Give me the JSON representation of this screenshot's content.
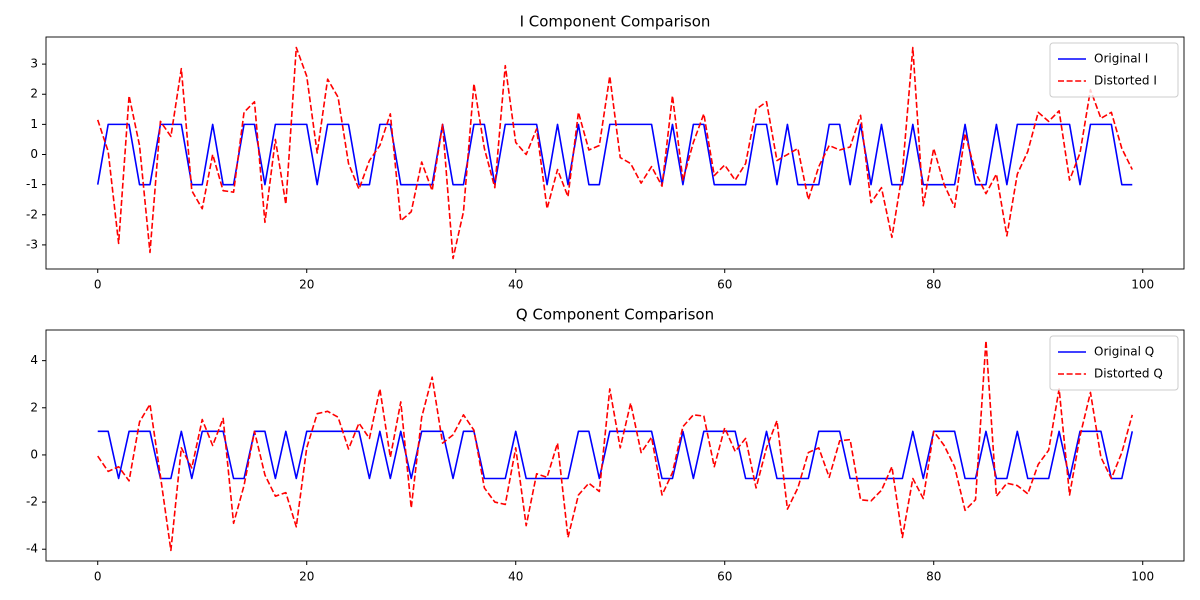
{
  "chart_data": [
    {
      "type": "line",
      "title": "I Component Comparison",
      "x": [
        0,
        1,
        2,
        3,
        4,
        5,
        6,
        7,
        8,
        9,
        10,
        11,
        12,
        13,
        14,
        15,
        16,
        17,
        18,
        19,
        20,
        21,
        22,
        23,
        24,
        25,
        26,
        27,
        28,
        29,
        30,
        31,
        32,
        33,
        34,
        35,
        36,
        37,
        38,
        39,
        40,
        41,
        42,
        43,
        44,
        45,
        46,
        47,
        48,
        49,
        50,
        51,
        52,
        53,
        54,
        55,
        56,
        57,
        58,
        59,
        60,
        61,
        62,
        63,
        64,
        65,
        66,
        67,
        68,
        69,
        70,
        71,
        72,
        73,
        74,
        75,
        76,
        77,
        78,
        79,
        80,
        81,
        82,
        83,
        84,
        85,
        86,
        87,
        88,
        89,
        90,
        91,
        92,
        93,
        94,
        95,
        96,
        97,
        98,
        99
      ],
      "series": [
        {
          "name": "Original I",
          "color": "#0000ff",
          "linestyle": "solid",
          "values": [
            -1,
            1,
            1,
            1,
            -1,
            -1,
            1,
            1,
            1,
            -1,
            -1,
            1,
            -1,
            -1,
            1,
            1,
            -1,
            1,
            1,
            1,
            1,
            -1,
            1,
            1,
            1,
            -1,
            -1,
            1,
            1,
            -1,
            -1,
            -1,
            -1,
            1,
            -1,
            -1,
            1,
            1,
            -1,
            1,
            1,
            1,
            1,
            -1,
            1,
            -1,
            1,
            -1,
            -1,
            1,
            1,
            1,
            1,
            1,
            -1,
            1,
            -1,
            1,
            1,
            -1,
            -1,
            -1,
            -1,
            1,
            1,
            -1,
            1,
            -1,
            -1,
            -1,
            1,
            1,
            -1,
            1,
            -1,
            1,
            -1,
            -1,
            1,
            -1,
            -1,
            -1,
            -1,
            1,
            -1,
            -1,
            1,
            -1,
            1,
            1,
            1,
            1,
            1,
            1,
            -1,
            1,
            1,
            1,
            -1,
            -1
          ]
        },
        {
          "name": "Distorted I",
          "color": "#ff0000",
          "linestyle": "dashed",
          "values": [
            1.15,
            0.1,
            -2.95,
            1.95,
            0.3,
            -3.25,
            1.1,
            0.6,
            2.85,
            -1.2,
            -1.8,
            0.0,
            -1.2,
            -1.25,
            1.4,
            1.75,
            -2.25,
            0.5,
            -1.65,
            3.55,
            2.6,
            0.05,
            2.5,
            1.9,
            -0.3,
            -1.15,
            -0.2,
            0.3,
            1.35,
            -2.2,
            -1.9,
            -0.25,
            -1.2,
            1.0,
            -3.45,
            -1.9,
            2.35,
            0.2,
            -1.1,
            2.95,
            0.4,
            0.0,
            0.85,
            -1.8,
            -0.5,
            -1.4,
            1.4,
            0.15,
            0.3,
            2.6,
            -0.1,
            -0.3,
            -0.95,
            -0.4,
            -1.05,
            1.95,
            -0.85,
            0.4,
            1.35,
            -0.7,
            -0.35,
            -0.85,
            -0.3,
            1.5,
            1.75,
            -0.2,
            0.0,
            0.2,
            -1.5,
            -0.4,
            0.3,
            0.15,
            0.25,
            1.3,
            -1.6,
            -1.1,
            -2.75,
            -0.6,
            3.55,
            -1.7,
            0.2,
            -1.0,
            -1.75,
            0.7,
            -0.6,
            -1.3,
            -0.65,
            -2.7,
            -0.65,
            0.1,
            1.4,
            1.1,
            1.45,
            -0.85,
            0.05,
            2.15,
            1.2,
            1.4,
            0.2,
            -0.5
          ]
        }
      ],
      "xlim": [
        -4.95,
        103.95
      ],
      "ylim": [
        -3.8,
        3.9
      ],
      "xticks": [
        0,
        20,
        40,
        60,
        80,
        100
      ],
      "yticks": [
        -3,
        -2,
        -1,
        0,
        1,
        2,
        3
      ],
      "legend": "upper right"
    },
    {
      "type": "line",
      "title": "Q Component Comparison",
      "x": [
        0,
        1,
        2,
        3,
        4,
        5,
        6,
        7,
        8,
        9,
        10,
        11,
        12,
        13,
        14,
        15,
        16,
        17,
        18,
        19,
        20,
        21,
        22,
        23,
        24,
        25,
        26,
        27,
        28,
        29,
        30,
        31,
        32,
        33,
        34,
        35,
        36,
        37,
        38,
        39,
        40,
        41,
        42,
        43,
        44,
        45,
        46,
        47,
        48,
        49,
        50,
        51,
        52,
        53,
        54,
        55,
        56,
        57,
        58,
        59,
        60,
        61,
        62,
        63,
        64,
        65,
        66,
        67,
        68,
        69,
        70,
        71,
        72,
        73,
        74,
        75,
        76,
        77,
        78,
        79,
        80,
        81,
        82,
        83,
        84,
        85,
        86,
        87,
        88,
        89,
        90,
        91,
        92,
        93,
        94,
        95,
        96,
        97,
        98,
        99
      ],
      "series": [
        {
          "name": "Original Q",
          "color": "#0000ff",
          "linestyle": "solid",
          "values": [
            1,
            1,
            -1,
            1,
            1,
            1,
            -1,
            -1,
            1,
            -1,
            1,
            1,
            1,
            -1,
            -1,
            1,
            1,
            -1,
            1,
            -1,
            1,
            1,
            1,
            1,
            1,
            1,
            -1,
            1,
            -1,
            1,
            -1,
            1,
            1,
            1,
            -1,
            1,
            1,
            -1,
            -1,
            -1,
            1,
            -1,
            -1,
            -1,
            -1,
            -1,
            1,
            1,
            -1,
            1,
            1,
            1,
            1,
            1,
            -1,
            -1,
            1,
            -1,
            1,
            1,
            1,
            1,
            -1,
            -1,
            1,
            -1,
            -1,
            -1,
            -1,
            1,
            1,
            1,
            -1,
            -1,
            -1,
            -1,
            -1,
            -1,
            1,
            -1,
            1,
            1,
            1,
            -1,
            -1,
            1,
            -1,
            -1,
            1,
            -1,
            -1,
            -1,
            1,
            -1,
            1,
            1,
            1,
            -1,
            -1,
            1
          ]
        },
        {
          "name": "Distorted Q",
          "color": "#ff0000",
          "linestyle": "dashed",
          "values": [
            -0.05,
            -0.7,
            -0.5,
            -1.1,
            1.4,
            2.15,
            -0.9,
            -4.05,
            0.3,
            -0.55,
            1.5,
            0.4,
            1.55,
            -2.9,
            -1.3,
            1.0,
            -0.85,
            -1.75,
            -1.6,
            -3.05,
            0.3,
            1.75,
            1.85,
            1.6,
            0.25,
            1.35,
            0.7,
            2.8,
            -0.1,
            2.25,
            -2.25,
            1.6,
            3.3,
            0.5,
            0.85,
            1.7,
            1.05,
            -1.4,
            -2.0,
            -2.1,
            0.3,
            -3.0,
            -0.8,
            -0.95,
            0.5,
            -3.5,
            -1.7,
            -1.2,
            -1.55,
            2.8,
            0.3,
            2.2,
            0.1,
            0.75,
            -1.7,
            -0.75,
            1.2,
            1.7,
            1.65,
            -0.5,
            1.15,
            0.15,
            0.7,
            -1.4,
            0.3,
            1.45,
            -2.3,
            -1.4,
            0.1,
            0.3,
            -0.95,
            0.6,
            0.65,
            -1.9,
            -1.95,
            -1.5,
            -0.5,
            -3.5,
            -1.0,
            -1.85,
            1.0,
            0.4,
            -0.5,
            -2.35,
            -1.9,
            4.85,
            -1.75,
            -1.2,
            -1.3,
            -1.65,
            -0.4,
            0.2,
            2.8,
            -1.7,
            0.8,
            2.65,
            -0.1,
            -1.0,
            0.1,
            1.7
          ]
        }
      ],
      "xlim": [
        -4.95,
        103.95
      ],
      "ylim": [
        -4.5,
        5.3
      ],
      "xticks": [
        0,
        20,
        40,
        60,
        80,
        100
      ],
      "yticks": [
        -4,
        -2,
        0,
        2,
        4
      ],
      "legend": "upper right"
    }
  ]
}
